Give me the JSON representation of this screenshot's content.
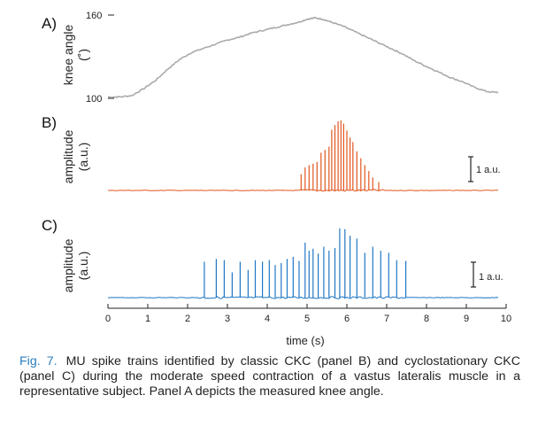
{
  "colors": {
    "angle": "#aaaaaa",
    "panel_b": "#e2561f",
    "panel_c": "#1f77c4",
    "axis": "#222222",
    "figure_label": "#2a7ec0"
  },
  "panels": [
    {
      "letter": "A)",
      "ylabel": [
        "knee angle",
        "(˚)"
      ],
      "ytick_top": "160",
      "ytick_bottom": "100"
    },
    {
      "letter": "B)",
      "ylabel": [
        "amplitude",
        "(a.u.)"
      ],
      "scale_bar": "1 a.u."
    },
    {
      "letter": "C)",
      "ylabel": [
        "amplitude",
        "(a.u.)"
      ],
      "scale_bar": "1 a.u."
    }
  ],
  "xaxis": {
    "title": "time (s)",
    "ticks": [
      "0",
      "1",
      "2",
      "3",
      "4",
      "5",
      "6",
      "7",
      "8",
      "9",
      "10"
    ]
  },
  "caption": {
    "label": "Fig. 7.",
    "text": "MU spike trains identified by classic CKC (panel B) and cyclostationary CKC (panel C) during the moderate speed contraction of a vastus lateralis muscle in a representative subject. Panel A depicts the measured knee angle."
  },
  "chart_data": [
    {
      "panel": "A)",
      "type": "line",
      "title": "",
      "xlabel": "time (s)",
      "ylabel": "knee angle (˚)",
      "xlim": [
        0,
        9.8
      ],
      "ylim": [
        100,
        160
      ],
      "series": [
        {
          "x": [
            0,
            0.3,
            0.6,
            0.9,
            1.2,
            1.5,
            1.8,
            2.1,
            2.4,
            2.7,
            3.0,
            3.3,
            3.6,
            3.9,
            4.2,
            4.5,
            4.8,
            5.0,
            5.2,
            5.4,
            5.6,
            5.9,
            6.2,
            6.5,
            6.8,
            7.1,
            7.4,
            7.7,
            8.0,
            8.3,
            8.6,
            8.9,
            9.2,
            9.5,
            9.8
          ],
          "y": [
            101,
            101,
            102,
            107,
            113,
            121,
            128,
            133,
            136,
            139,
            142,
            144,
            147,
            149,
            151,
            153,
            155,
            157,
            158,
            157,
            155,
            152,
            148,
            144,
            140,
            136,
            132,
            127,
            123,
            119,
            115,
            112,
            108,
            105,
            104
          ]
        }
      ]
    },
    {
      "panel": "B)",
      "type": "line",
      "title": "",
      "xlabel": "time (s)",
      "ylabel": "amplitude (a.u.)",
      "xlim": [
        0,
        9.8
      ],
      "ylim": [
        0,
        1.55
      ],
      "series": [
        {
          "x": [
            4.85,
            4.95,
            5.05,
            5.15,
            5.25,
            5.35,
            5.45,
            5.55,
            5.62,
            5.7,
            5.78,
            5.85,
            5.92,
            6.0,
            6.08,
            6.15,
            6.25,
            6.35,
            6.45,
            6.55,
            6.65,
            6.8
          ],
          "y": [
            0.35,
            0.5,
            0.55,
            0.58,
            0.62,
            0.82,
            0.88,
            0.95,
            1.32,
            1.42,
            1.5,
            1.52,
            1.45,
            1.3,
            1.15,
            1.05,
            0.85,
            0.7,
            0.55,
            0.42,
            0.28,
            0.18
          ]
        }
      ]
    },
    {
      "panel": "C)",
      "type": "line",
      "title": "",
      "xlabel": "time (s)",
      "ylabel": "amplitude (a.u.)",
      "xlim": [
        0,
        9.8
      ],
      "ylim": [
        0,
        1.55
      ],
      "series": [
        {
          "x": [
            2.42,
            2.72,
            2.92,
            3.12,
            3.32,
            3.52,
            3.7,
            3.88,
            4.05,
            4.2,
            4.35,
            4.5,
            4.65,
            4.8,
            4.95,
            5.05,
            5.15,
            5.28,
            5.42,
            5.55,
            5.7,
            5.82,
            5.95,
            6.08,
            6.25,
            6.45,
            6.65,
            6.85,
            7.05,
            7.25,
            7.48
          ],
          "y": [
            0.88,
            0.95,
            0.92,
            0.62,
            0.88,
            0.68,
            0.92,
            0.88,
            0.92,
            0.8,
            0.85,
            0.95,
            1.0,
            0.9,
            1.35,
            1.15,
            1.2,
            1.08,
            1.25,
            1.15,
            1.22,
            1.7,
            1.68,
            1.52,
            1.45,
            1.1,
            1.25,
            1.15,
            1.1,
            0.92,
            0.9
          ]
        }
      ]
    }
  ]
}
